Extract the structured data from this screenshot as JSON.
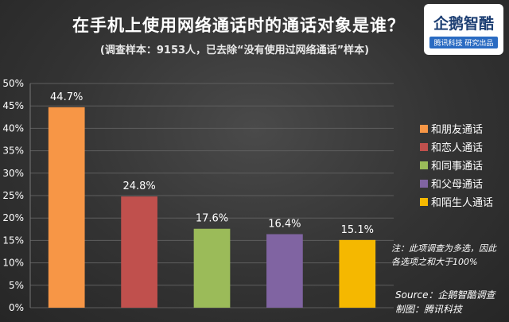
{
  "chart_data": {
    "type": "bar",
    "title": "在手机上使用网络通话时的通话对象是谁？",
    "subtitle": "(调查样本：9153人，已去除“没有使用过网络通话”样本)",
    "categories": [
      "和朋友通话",
      "和恋人通话",
      "和同事通话",
      "和父母通话",
      "和陌生人通话"
    ],
    "values": [
      44.7,
      24.8,
      17.6,
      16.4,
      15.1
    ],
    "value_labels": [
      "44.7%",
      "24.8%",
      "17.6%",
      "16.4%",
      "15.1%"
    ],
    "colors": [
      "#f79646",
      "#c0504d",
      "#9bbb59",
      "#8064a2",
      "#f5b800"
    ],
    "ylim": [
      0,
      50
    ],
    "yticks": [
      "0%",
      "5%",
      "10%",
      "15%",
      "20%",
      "25%",
      "30%",
      "35%",
      "40%",
      "45%",
      "50%"
    ],
    "legend_position": "right",
    "grid": true
  },
  "logo": {
    "name": "企鹅智酷",
    "tagline": "腾讯科技 研究出品"
  },
  "note": {
    "line1": "注：此项调查为多选，因此",
    "line2": "各选项之和大于100%"
  },
  "source": {
    "line1": "Source：企鹅智酷调查",
    "line2": "制图：腾讯科技"
  }
}
